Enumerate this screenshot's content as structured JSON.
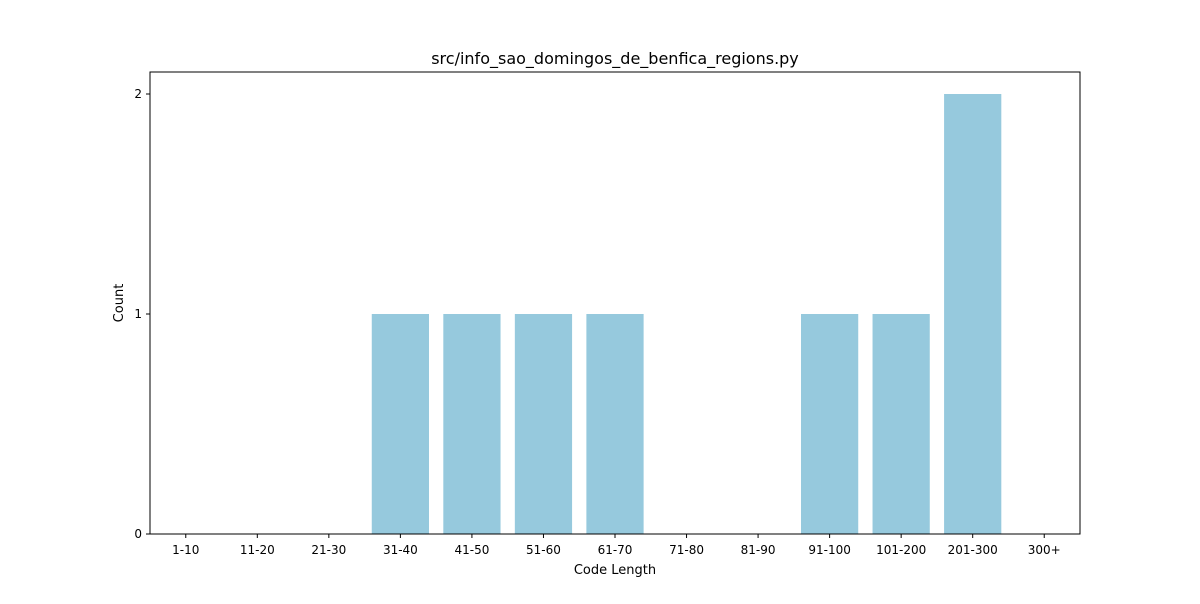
{
  "chart_data": {
    "type": "bar",
    "title": "src/info_sao_domingos_de_benfica_regions.py",
    "xlabel": "Code Length",
    "ylabel": "Count",
    "categories": [
      "1-10",
      "11-20",
      "21-30",
      "31-40",
      "41-50",
      "51-60",
      "61-70",
      "71-80",
      "81-90",
      "91-100",
      "101-200",
      "201-300",
      "300+"
    ],
    "values": [
      0,
      0,
      0,
      1,
      1,
      1,
      1,
      0,
      0,
      1,
      1,
      2,
      0
    ],
    "ylim": [
      0,
      2.1
    ],
    "yticks": [
      0,
      1,
      2
    ],
    "bar_color": "#96c9dd",
    "grid": false,
    "legend": "none"
  }
}
